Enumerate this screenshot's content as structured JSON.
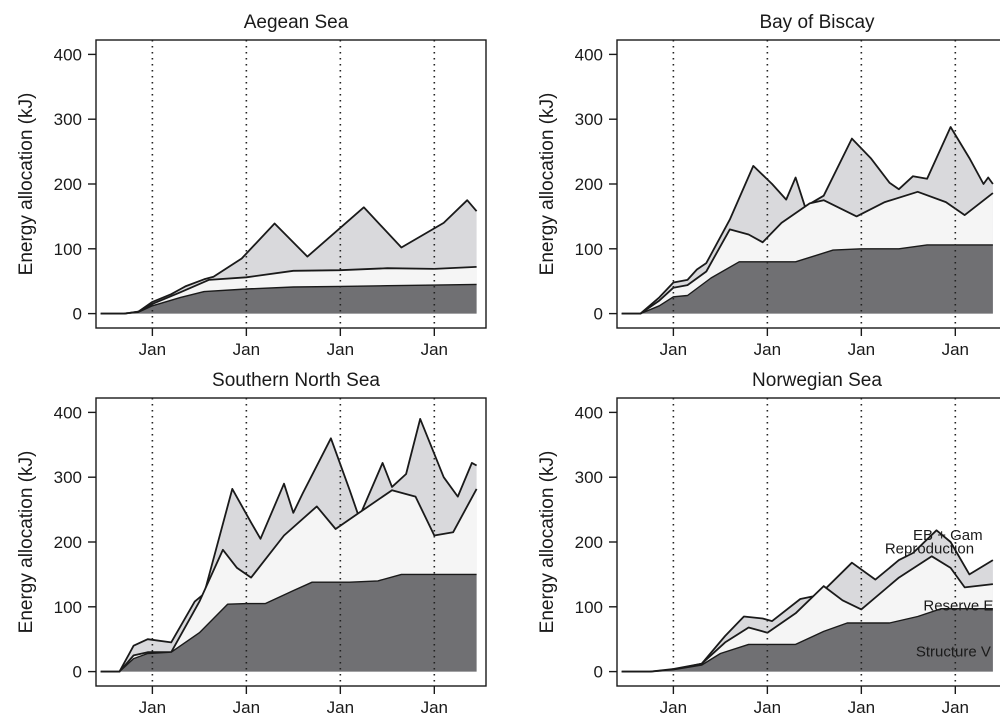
{
  "colors": {
    "structure": "#707073",
    "reserve": "#f5f5f5",
    "reproduction": "#d9d9dc",
    "outline": "#1a1a1a"
  },
  "chart_data": [
    {
      "type": "area",
      "title": "Aegean Sea",
      "ylabel": "Energy allocation (kJ)",
      "ylim": [
        0,
        400
      ],
      "yticks": [
        0,
        100,
        200,
        300,
        400
      ],
      "xlim": [
        -0.6,
        3.55
      ],
      "xtick_positions": [
        0,
        1,
        2,
        3
      ],
      "xtick_labels": [
        "Jan",
        "Jan",
        "Jan",
        "Jan"
      ],
      "vlines": [
        0,
        1,
        2,
        3
      ],
      "series": [
        {
          "key": "structure",
          "points": [
            [
              -0.55,
              0
            ],
            [
              -0.3,
              0
            ],
            [
              -0.15,
              2
            ],
            [
              0,
              12
            ],
            [
              0.3,
              25
            ],
            [
              0.55,
              34
            ],
            [
              1,
              38
            ],
            [
              1.5,
              41
            ],
            [
              2,
              42
            ],
            [
              2.5,
              43
            ],
            [
              3,
              44
            ],
            [
              3.45,
              45
            ]
          ]
        },
        {
          "key": "reserve",
          "points": [
            [
              -0.55,
              0
            ],
            [
              -0.3,
              0
            ],
            [
              -0.15,
              3
            ],
            [
              0,
              15
            ],
            [
              0.3,
              33
            ],
            [
              0.6,
              52
            ],
            [
              1,
              56
            ],
            [
              1.5,
              66
            ],
            [
              2,
              67
            ],
            [
              2.5,
              70
            ],
            [
              3,
              69
            ],
            [
              3.45,
              72
            ]
          ]
        },
        {
          "key": "reproduction",
          "points": [
            [
              -0.55,
              0
            ],
            [
              -0.3,
              0
            ],
            [
              -0.15,
              3
            ],
            [
              0,
              18
            ],
            [
              0.2,
              30
            ],
            [
              0.3,
              38
            ],
            [
              0.35,
              42
            ],
            [
              0.55,
              53
            ],
            [
              0.65,
              57
            ],
            [
              0.95,
              85
            ],
            [
              1.3,
              139
            ],
            [
              1.65,
              88
            ],
            [
              2.25,
              164
            ],
            [
              2.65,
              102
            ],
            [
              3.1,
              140
            ],
            [
              3.35,
              175
            ],
            [
              3.45,
              158
            ]
          ]
        }
      ]
    },
    {
      "type": "area",
      "title": "Bay of Biscay",
      "ylabel": "Energy allocation (kJ)",
      "ylim": [
        0,
        400
      ],
      "yticks": [
        0,
        100,
        200,
        300,
        400
      ],
      "xlim": [
        -0.6,
        3.55
      ],
      "xtick_positions": [
        0,
        1,
        2,
        3
      ],
      "xtick_labels": [
        "Jan",
        "Jan",
        "Jan",
        "Jan"
      ],
      "vlines": [
        0,
        1,
        2,
        3
      ],
      "series": [
        {
          "key": "structure",
          "points": [
            [
              -0.55,
              0
            ],
            [
              -0.35,
              0
            ],
            [
              -0.15,
              12
            ],
            [
              0,
              26
            ],
            [
              0.15,
              28
            ],
            [
              0.4,
              55
            ],
            [
              0.7,
              80
            ],
            [
              1,
              80
            ],
            [
              1.3,
              80
            ],
            [
              1.7,
              98
            ],
            [
              2,
              100
            ],
            [
              2.4,
              100
            ],
            [
              2.7,
              106
            ],
            [
              3.4,
              106
            ]
          ]
        },
        {
          "key": "reserve",
          "points": [
            [
              -0.55,
              0
            ],
            [
              -0.35,
              0
            ],
            [
              -0.15,
              20
            ],
            [
              0,
              40
            ],
            [
              0.15,
              44
            ],
            [
              0.35,
              65
            ],
            [
              0.6,
              130
            ],
            [
              0.8,
              122
            ],
            [
              0.95,
              110
            ],
            [
              1.15,
              140
            ],
            [
              1.45,
              170
            ],
            [
              1.6,
              175
            ],
            [
              1.95,
              150
            ],
            [
              2.25,
              172
            ],
            [
              2.6,
              188
            ],
            [
              2.9,
              172
            ],
            [
              3.1,
              152
            ],
            [
              3.4,
              186
            ]
          ]
        },
        {
          "key": "reproduction",
          "points": [
            [
              -0.55,
              0
            ],
            [
              -0.35,
              0
            ],
            [
              -0.15,
              25
            ],
            [
              0,
              48
            ],
            [
              0.15,
              52
            ],
            [
              0.25,
              68
            ],
            [
              0.35,
              78
            ],
            [
              0.6,
              145
            ],
            [
              0.85,
              228
            ],
            [
              1.05,
              200
            ],
            [
              1.2,
              176
            ],
            [
              1.3,
              210
            ],
            [
              1.4,
              165
            ],
            [
              1.6,
              182
            ],
            [
              1.9,
              270
            ],
            [
              2.1,
              240
            ],
            [
              2.3,
              202
            ],
            [
              2.4,
              192
            ],
            [
              2.55,
              212
            ],
            [
              2.7,
              208
            ],
            [
              2.95,
              288
            ],
            [
              3.15,
              240
            ],
            [
              3.3,
              200
            ],
            [
              3.35,
              210
            ],
            [
              3.4,
              200
            ]
          ]
        }
      ]
    },
    {
      "type": "area",
      "title": "Southern North Sea",
      "ylabel": "Energy allocation (kJ)",
      "ylim": [
        0,
        400
      ],
      "yticks": [
        0,
        100,
        200,
        300,
        400
      ],
      "xlim": [
        -0.6,
        3.55
      ],
      "xtick_positions": [
        0,
        1,
        2,
        3
      ],
      "xtick_labels": [
        "Jan",
        "Jan",
        "Jan",
        "Jan"
      ],
      "vlines": [
        0,
        1,
        2,
        3
      ],
      "series": [
        {
          "key": "structure",
          "points": [
            [
              -0.55,
              0
            ],
            [
              -0.35,
              0
            ],
            [
              -0.2,
              20
            ],
            [
              -0.05,
              28
            ],
            [
              0.2,
              30
            ],
            [
              0.5,
              60
            ],
            [
              0.8,
              104
            ],
            [
              1,
              105
            ],
            [
              1.2,
              105
            ],
            [
              1.5,
              125
            ],
            [
              1.7,
              138
            ],
            [
              2.1,
              138
            ],
            [
              2.4,
              140
            ],
            [
              2.65,
              150
            ],
            [
              3.45,
              150
            ]
          ]
        },
        {
          "key": "reserve",
          "points": [
            [
              -0.55,
              0
            ],
            [
              -0.35,
              0
            ],
            [
              -0.2,
              25
            ],
            [
              -0.05,
              30
            ],
            [
              0.2,
              30
            ],
            [
              0.5,
              108
            ],
            [
              0.75,
              188
            ],
            [
              0.9,
              160
            ],
            [
              1.05,
              145
            ],
            [
              1.4,
              210
            ],
            [
              1.75,
              255
            ],
            [
              1.95,
              220
            ],
            [
              2.2,
              245
            ],
            [
              2.55,
              280
            ],
            [
              2.8,
              270
            ],
            [
              3.0,
              210
            ],
            [
              3.2,
              215
            ],
            [
              3.45,
              282
            ]
          ]
        },
        {
          "key": "reproduction",
          "points": [
            [
              -0.55,
              0
            ],
            [
              -0.35,
              0
            ],
            [
              -0.2,
              40
            ],
            [
              -0.05,
              50
            ],
            [
              0.2,
              45
            ],
            [
              0.45,
              108
            ],
            [
              0.55,
              120
            ],
            [
              0.85,
              282
            ],
            [
              1.05,
              230
            ],
            [
              1.15,
              205
            ],
            [
              1.4,
              290
            ],
            [
              1.5,
              245
            ],
            [
              1.6,
              275
            ],
            [
              1.9,
              360
            ],
            [
              2.1,
              280
            ],
            [
              2.2,
              238
            ],
            [
              2.45,
              322
            ],
            [
              2.55,
              285
            ],
            [
              2.7,
              305
            ],
            [
              2.85,
              390
            ],
            [
              3.1,
              300
            ],
            [
              3.25,
              270
            ],
            [
              3.4,
              322
            ],
            [
              3.45,
              318
            ]
          ]
        }
      ]
    },
    {
      "type": "area",
      "title": "Norwegian Sea",
      "ylabel": "Energy allocation (kJ)",
      "ylim": [
        0,
        400
      ],
      "yticks": [
        0,
        100,
        200,
        300,
        400
      ],
      "xlim": [
        -0.6,
        3.55
      ],
      "xtick_positions": [
        0,
        1,
        2,
        3
      ],
      "xtick_labels": [
        "Jan",
        "Jan",
        "Jan",
        "Jan"
      ],
      "vlines": [
        0,
        1,
        2,
        3
      ],
      "annotations": [
        {
          "text": "EB + Gam",
          "x": 2.55,
          "y": 203
        },
        {
          "text": "Reproduction",
          "x": 2.25,
          "y": 182
        },
        {
          "text": "Reserve E",
          "x": 2.66,
          "y": 94
        },
        {
          "text": "Structure V",
          "x": 2.58,
          "y": 23
        }
      ],
      "series": [
        {
          "key": "structure",
          "points": [
            [
              -0.55,
              0
            ],
            [
              -0.25,
              0
            ],
            [
              0,
              3
            ],
            [
              0.3,
              10
            ],
            [
              0.5,
              28
            ],
            [
              0.8,
              42
            ],
            [
              1.3,
              42
            ],
            [
              1.6,
              62
            ],
            [
              1.85,
              75
            ],
            [
              2.3,
              75
            ],
            [
              2.6,
              85
            ],
            [
              2.85,
              97
            ],
            [
              3.4,
              97
            ]
          ]
        },
        {
          "key": "reserve",
          "points": [
            [
              -0.55,
              0
            ],
            [
              -0.25,
              0
            ],
            [
              0,
              3
            ],
            [
              0.3,
              12
            ],
            [
              0.55,
              45
            ],
            [
              0.8,
              68
            ],
            [
              1.0,
              60
            ],
            [
              1.3,
              90
            ],
            [
              1.6,
              132
            ],
            [
              1.8,
              110
            ],
            [
              2.0,
              96
            ],
            [
              2.4,
              145
            ],
            [
              2.75,
              178
            ],
            [
              2.95,
              160
            ],
            [
              3.1,
              130
            ],
            [
              3.4,
              135
            ]
          ]
        },
        {
          "key": "reproduction",
          "points": [
            [
              -0.55,
              0
            ],
            [
              -0.25,
              0
            ],
            [
              0,
              4
            ],
            [
              0.3,
              12
            ],
            [
              0.55,
              55
            ],
            [
              0.75,
              85
            ],
            [
              0.95,
              82
            ],
            [
              1.05,
              78
            ],
            [
              1.35,
              112
            ],
            [
              1.55,
              118
            ],
            [
              1.9,
              168
            ],
            [
              2.15,
              142
            ],
            [
              2.3,
              160
            ],
            [
              2.4,
              172
            ],
            [
              2.55,
              183
            ],
            [
              2.8,
              218
            ],
            [
              2.95,
              200
            ],
            [
              3.15,
              150
            ],
            [
              3.4,
              172
            ]
          ]
        }
      ]
    }
  ]
}
